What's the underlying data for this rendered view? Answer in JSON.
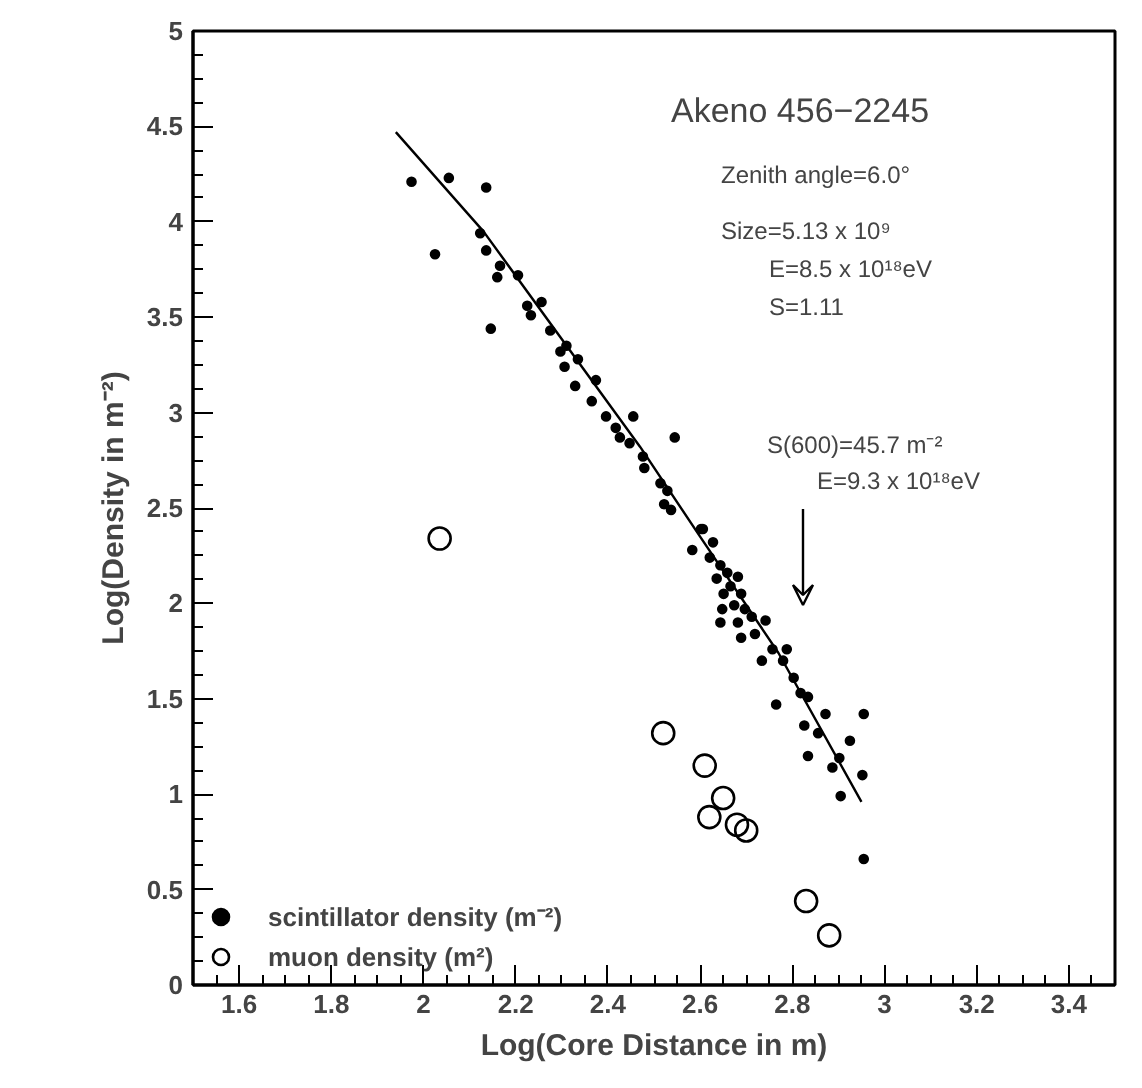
{
  "chart_data": {
    "type": "scatter",
    "xlabel": "Log(Core Distance in m)",
    "ylabel": "Log(Density in m⁻²)",
    "xlim": [
      1.5,
      3.5
    ],
    "xticks": [
      1.6,
      1.8,
      2,
      2.2,
      2.4,
      2.6,
      2.8,
      3,
      3.2,
      3.4
    ],
    "ylim": [
      0,
      5
    ],
    "yticks": [
      0,
      0.5,
      1,
      1.5,
      2,
      2.5,
      3,
      3.5,
      4,
      4.5,
      5
    ],
    "grid": false,
    "legend": "bottom left",
    "annotations": [
      "Akeno 456−2245",
      "Zenith angle=6.0°",
      "Size=5.13 x 10⁹",
      "E=8.5 x 10¹⁸eV",
      "S=1.11",
      "S(600)=45.7 m⁻²",
      "E=9.3 x 10¹⁸eV"
    ],
    "series": [
      {
        "name": "scintillator density (m⁻²)",
        "marker": "circle",
        "color": "#000000",
        "x": [
          1.974,
          2.055,
          2.136,
          2.025,
          2.123,
          2.136,
          2.166,
          2.16,
          2.205,
          2.146,
          2.225,
          2.233,
          2.256,
          2.275,
          2.297,
          2.31,
          2.306,
          2.335,
          2.329,
          2.374,
          2.365,
          2.396,
          2.417,
          2.455,
          2.426,
          2.447,
          2.476,
          2.479,
          2.545,
          2.514,
          2.529,
          2.522,
          2.537,
          2.602,
          2.583,
          2.606,
          2.628,
          2.621,
          2.644,
          2.659,
          2.636,
          2.666,
          2.682,
          2.651,
          2.689,
          2.674,
          2.697,
          2.648,
          2.644,
          2.682,
          2.712,
          2.689,
          2.719,
          2.742,
          2.734,
          2.757,
          2.788,
          2.78,
          2.765,
          2.803,
          2.818,
          2.834,
          2.826,
          2.872,
          2.834,
          2.856,
          2.887,
          2.925,
          2.902,
          2.905,
          2.955,
          2.952,
          2.955
        ],
        "values": [
          4.21,
          4.23,
          4.18,
          3.83,
          3.94,
          3.85,
          3.77,
          3.71,
          3.72,
          3.44,
          3.56,
          3.51,
          3.58,
          3.43,
          3.32,
          3.35,
          3.24,
          3.28,
          3.14,
          3.17,
          3.06,
          2.98,
          2.92,
          2.98,
          2.87,
          2.84,
          2.77,
          2.71,
          2.87,
          2.63,
          2.59,
          2.52,
          2.49,
          2.39,
          2.28,
          2.39,
          2.32,
          2.24,
          2.2,
          2.16,
          2.13,
          2.09,
          2.14,
          2.05,
          2.05,
          1.99,
          1.97,
          1.97,
          1.9,
          1.9,
          1.93,
          1.82,
          1.84,
          1.91,
          1.7,
          1.76,
          1.76,
          1.7,
          1.47,
          1.61,
          1.53,
          1.51,
          1.36,
          1.42,
          1.2,
          1.32,
          1.14,
          1.28,
          1.19,
          0.99,
          1.42,
          1.1,
          0.66
        ]
      },
      {
        "name": "muon density (m²)",
        "marker": "circle",
        "color": "#000000",
        "x": [
          2.035,
          2.52,
          2.61,
          2.65,
          2.62,
          2.68,
          2.7,
          2.83,
          2.88
        ],
        "values": [
          2.34,
          1.32,
          1.15,
          0.98,
          0.88,
          0.84,
          0.81,
          0.44,
          0.26
        ]
      },
      {
        "type": "line",
        "line_style": "solid",
        "color": "#000000",
        "x": [
          1.94,
          2.13,
          2.47,
          2.6,
          2.77,
          2.95
        ],
        "values": [
          4.47,
          3.95,
          2.82,
          2.35,
          1.74,
          0.96
        ]
      }
    ]
  }
}
